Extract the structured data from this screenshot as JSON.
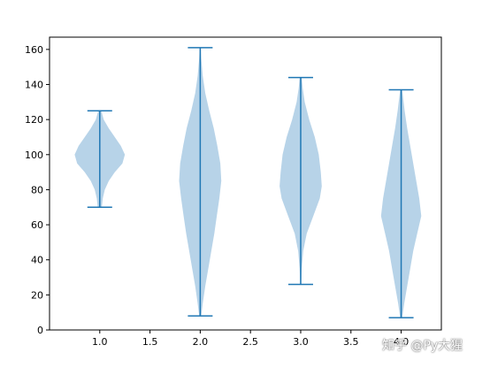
{
  "chart_data": {
    "type": "violin",
    "title": "",
    "xlabel": "",
    "ylabel": "",
    "xlim": [
      0.5,
      4.4
    ],
    "ylim": [
      0,
      167
    ],
    "x_ticks": [
      1.0,
      1.5,
      2.0,
      2.5,
      3.0,
      3.5,
      4.0
    ],
    "x_tick_labels": [
      "1.0",
      "1.5",
      "2.0",
      "2.5",
      "3.0",
      "3.5",
      "4.0"
    ],
    "y_ticks": [
      0,
      20,
      40,
      60,
      80,
      100,
      120,
      140,
      160
    ],
    "y_tick_labels": [
      "0",
      "20",
      "40",
      "60",
      "80",
      "100",
      "120",
      "140",
      "160"
    ],
    "grid": false,
    "colors": {
      "body": "#b7d3e8",
      "line": "#1f77b4"
    },
    "violins": [
      {
        "position": 1,
        "min": 70,
        "max": 125,
        "peak": 100,
        "profile": [
          [
            70,
            0.04
          ],
          [
            75,
            0.06
          ],
          [
            80,
            0.1
          ],
          [
            85,
            0.18
          ],
          [
            90,
            0.3
          ],
          [
            95,
            0.45
          ],
          [
            100,
            0.5
          ],
          [
            105,
            0.42
          ],
          [
            110,
            0.3
          ],
          [
            115,
            0.18
          ],
          [
            120,
            0.08
          ],
          [
            125,
            0.03
          ]
        ]
      },
      {
        "position": 2,
        "min": 8,
        "max": 161,
        "peak": 87,
        "profile": [
          [
            8,
            0.02
          ],
          [
            15,
            0.05
          ],
          [
            25,
            0.1
          ],
          [
            35,
            0.16
          ],
          [
            45,
            0.22
          ],
          [
            55,
            0.28
          ],
          [
            65,
            0.33
          ],
          [
            75,
            0.38
          ],
          [
            85,
            0.42
          ],
          [
            95,
            0.4
          ],
          [
            105,
            0.34
          ],
          [
            115,
            0.27
          ],
          [
            125,
            0.18
          ],
          [
            135,
            0.1
          ],
          [
            145,
            0.05
          ],
          [
            155,
            0.02
          ],
          [
            161,
            0.01
          ]
        ]
      },
      {
        "position": 3,
        "min": 26,
        "max": 144,
        "peak": 82,
        "profile": [
          [
            26,
            0.01
          ],
          [
            35,
            0.02
          ],
          [
            45,
            0.05
          ],
          [
            55,
            0.12
          ],
          [
            65,
            0.25
          ],
          [
            75,
            0.38
          ],
          [
            82,
            0.42
          ],
          [
            90,
            0.4
          ],
          [
            100,
            0.36
          ],
          [
            110,
            0.28
          ],
          [
            120,
            0.17
          ],
          [
            130,
            0.08
          ],
          [
            138,
            0.04
          ],
          [
            144,
            0.02
          ]
        ]
      },
      {
        "position": 4,
        "min": 7,
        "max": 137,
        "peak": 65,
        "profile": [
          [
            7,
            0.02
          ],
          [
            15,
            0.06
          ],
          [
            25,
            0.12
          ],
          [
            35,
            0.18
          ],
          [
            45,
            0.24
          ],
          [
            55,
            0.32
          ],
          [
            65,
            0.4
          ],
          [
            75,
            0.36
          ],
          [
            85,
            0.3
          ],
          [
            95,
            0.24
          ],
          [
            105,
            0.18
          ],
          [
            115,
            0.12
          ],
          [
            125,
            0.07
          ],
          [
            137,
            0.02
          ]
        ]
      }
    ]
  },
  "watermark": {
    "text": "知乎 @Py大猩"
  }
}
